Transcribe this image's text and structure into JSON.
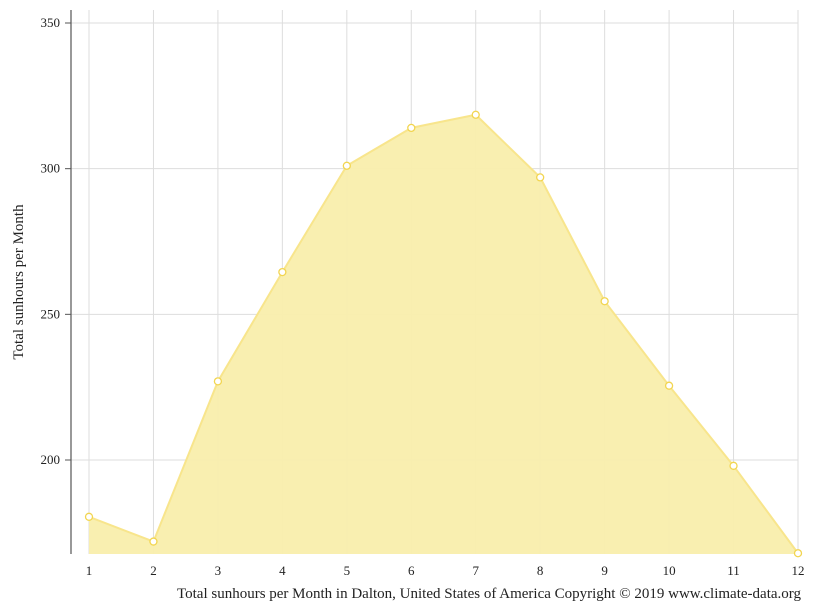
{
  "chart_data": {
    "type": "area",
    "ylabel": "Total sunhours per Month",
    "caption": "Total sunhours per Month in Dalton, United States of America Copyright © 2019 www.climate-data.org",
    "x": [
      1,
      2,
      3,
      4,
      5,
      6,
      7,
      8,
      9,
      10,
      11,
      12
    ],
    "xticks": [
      "1",
      "2",
      "3",
      "4",
      "5",
      "6",
      "7",
      "8",
      "9",
      "10",
      "11",
      "12"
    ],
    "yticks": [
      200,
      250,
      300,
      350
    ],
    "ylim": [
      168,
      355
    ],
    "grid": true,
    "series": [
      {
        "values": [
          180.5,
          172.0,
          227.0,
          264.5,
          301.0,
          314.0,
          318.5,
          297.0,
          254.5,
          225.5,
          198.0,
          168.0
        ],
        "fill": "#f9eeac",
        "stroke": "#f8e58c",
        "marker_stroke": "#f2d550"
      }
    ]
  }
}
